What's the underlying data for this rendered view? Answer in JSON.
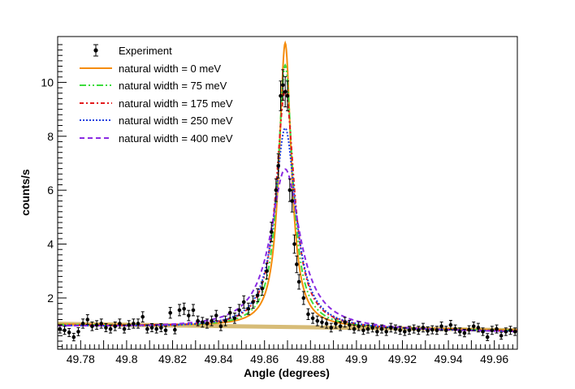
{
  "chart_data": {
    "type": "line",
    "title": "",
    "xlabel": "Angle (degrees)",
    "ylabel": "counts/s",
    "xlim": [
      49.77,
      49.97
    ],
    "ylim": [
      0.1,
      11.7
    ],
    "xticks": [
      "49.78",
      "49.8",
      "49.82",
      "49.84",
      "49.86",
      "49.88",
      "49.9",
      "49.92",
      "49.94",
      "49.96"
    ],
    "yticks": [
      "2",
      "4",
      "6",
      "8",
      "10"
    ],
    "grid": false,
    "legend_position": "top-left",
    "peak_center": 49.869,
    "background_band": {
      "x": [
        49.77,
        49.97
      ],
      "y_low": [
        0.96,
        0.74
      ],
      "y_high": [
        1.12,
        0.88
      ],
      "color": "#c9a64a"
    },
    "series": [
      {
        "name": "natural width = 0 meV",
        "color": "#f58c0c",
        "dash": "",
        "baseline": [
          1.02,
          0.8
        ],
        "amplitude": 10.55,
        "hwhm": 0.0032
      },
      {
        "name": "natural width = 75 meV",
        "color": "#3ddc3d",
        "dash": "8,3,2,3,2,3",
        "baseline": [
          1.0,
          0.78
        ],
        "amplitude": 9.75,
        "hwhm": 0.0039
      },
      {
        "name": "natural width = 175 meV",
        "color": "#e31a1c",
        "dash": "5,3,2,3",
        "baseline": [
          0.98,
          0.76
        ],
        "amplitude": 8.85,
        "hwhm": 0.0048
      },
      {
        "name": "natural width = 250 meV",
        "color": "#1f3fe0",
        "dash": "2,2",
        "baseline": [
          0.96,
          0.74
        ],
        "amplitude": 7.45,
        "hwhm": 0.0056
      },
      {
        "name": "natural width = 400 meV",
        "color": "#8a2be2",
        "dash": "6,4",
        "baseline": [
          0.94,
          0.72
        ],
        "amplitude": 5.95,
        "hwhm": 0.0078
      }
    ],
    "experiment": {
      "name": "Experiment",
      "color": "#000000",
      "x": [
        49.771,
        49.773,
        49.775,
        49.777,
        49.779,
        49.781,
        49.783,
        49.785,
        49.787,
        49.789,
        49.791,
        49.793,
        49.795,
        49.797,
        49.799,
        49.801,
        49.803,
        49.805,
        49.807,
        49.809,
        49.811,
        49.813,
        49.815,
        49.817,
        49.819,
        49.821,
        49.823,
        49.825,
        49.827,
        49.829,
        49.831,
        49.833,
        49.835,
        49.837,
        49.839,
        49.841,
        49.843,
        49.845,
        49.847,
        49.849,
        49.851,
        49.853,
        49.855,
        49.857,
        49.859,
        49.861,
        49.863,
        49.865,
        49.866,
        49.867,
        49.868,
        49.869,
        49.87,
        49.871,
        49.872,
        49.873,
        49.874,
        49.875,
        49.877,
        49.879,
        49.881,
        49.883,
        49.885,
        49.887,
        49.889,
        49.891,
        49.893,
        49.895,
        49.897,
        49.899,
        49.901,
        49.903,
        49.905,
        49.907,
        49.909,
        49.911,
        49.913,
        49.915,
        49.917,
        49.919,
        49.921,
        49.923,
        49.925,
        49.927,
        49.929,
        49.931,
        49.933,
        49.935,
        49.937,
        49.939,
        49.941,
        49.943,
        49.945,
        49.947,
        49.949,
        49.951,
        49.953,
        49.955,
        49.957,
        49.959,
        49.961,
        49.963,
        49.965,
        49.967,
        49.969
      ],
      "y": [
        0.85,
        0.8,
        0.72,
        0.55,
        0.75,
        1.05,
        1.2,
        0.95,
        1.0,
        1.05,
        0.9,
        0.85,
        0.95,
        1.05,
        0.85,
        1.0,
        1.05,
        1.05,
        1.3,
        0.85,
        0.9,
        0.85,
        0.9,
        0.8,
        1.45,
        0.82,
        1.55,
        1.6,
        1.35,
        1.55,
        1.15,
        1.1,
        1.05,
        1.15,
        1.35,
        0.95,
        1.15,
        1.45,
        1.25,
        1.55,
        1.85,
        1.6,
        1.85,
        2.1,
        2.35,
        3.0,
        4.45,
        6.0,
        6.9,
        9.5,
        9.9,
        9.65,
        9.5,
        6.0,
        5.6,
        4.0,
        3.25,
        2.6,
        2.0,
        1.4,
        1.25,
        1.15,
        1.1,
        1.05,
        0.9,
        1.05,
        0.95,
        1.1,
        1.0,
        0.85,
        0.95,
        0.8,
        0.85,
        0.9,
        0.75,
        0.85,
        0.75,
        0.9,
        0.85,
        0.8,
        0.75,
        0.8,
        0.85,
        0.8,
        0.9,
        0.78,
        0.82,
        0.8,
        0.95,
        0.8,
        1.0,
        0.85,
        0.75,
        0.7,
        0.82,
        0.95,
        0.9,
        0.75,
        0.55,
        0.8,
        0.85,
        0.6,
        0.75,
        0.8,
        0.75
      ],
      "err": [
        0.15,
        0.15,
        0.15,
        0.14,
        0.15,
        0.17,
        0.18,
        0.16,
        0.16,
        0.17,
        0.15,
        0.15,
        0.16,
        0.17,
        0.15,
        0.16,
        0.17,
        0.17,
        0.19,
        0.15,
        0.15,
        0.15,
        0.15,
        0.15,
        0.2,
        0.15,
        0.21,
        0.21,
        0.19,
        0.21,
        0.18,
        0.18,
        0.17,
        0.18,
        0.19,
        0.16,
        0.18,
        0.2,
        0.19,
        0.21,
        0.23,
        0.21,
        0.23,
        0.24,
        0.25,
        0.29,
        0.36,
        0.42,
        0.45,
        0.55,
        0.57,
        0.56,
        0.55,
        0.42,
        0.41,
        0.34,
        0.31,
        0.27,
        0.24,
        0.2,
        0.19,
        0.18,
        0.18,
        0.17,
        0.16,
        0.17,
        0.16,
        0.18,
        0.17,
        0.15,
        0.16,
        0.15,
        0.15,
        0.16,
        0.14,
        0.15,
        0.14,
        0.16,
        0.15,
        0.15,
        0.14,
        0.15,
        0.15,
        0.15,
        0.16,
        0.15,
        0.15,
        0.15,
        0.16,
        0.15,
        0.17,
        0.15,
        0.14,
        0.14,
        0.15,
        0.16,
        0.16,
        0.14,
        0.13,
        0.15,
        0.15,
        0.13,
        0.14,
        0.15,
        0.14
      ]
    }
  }
}
